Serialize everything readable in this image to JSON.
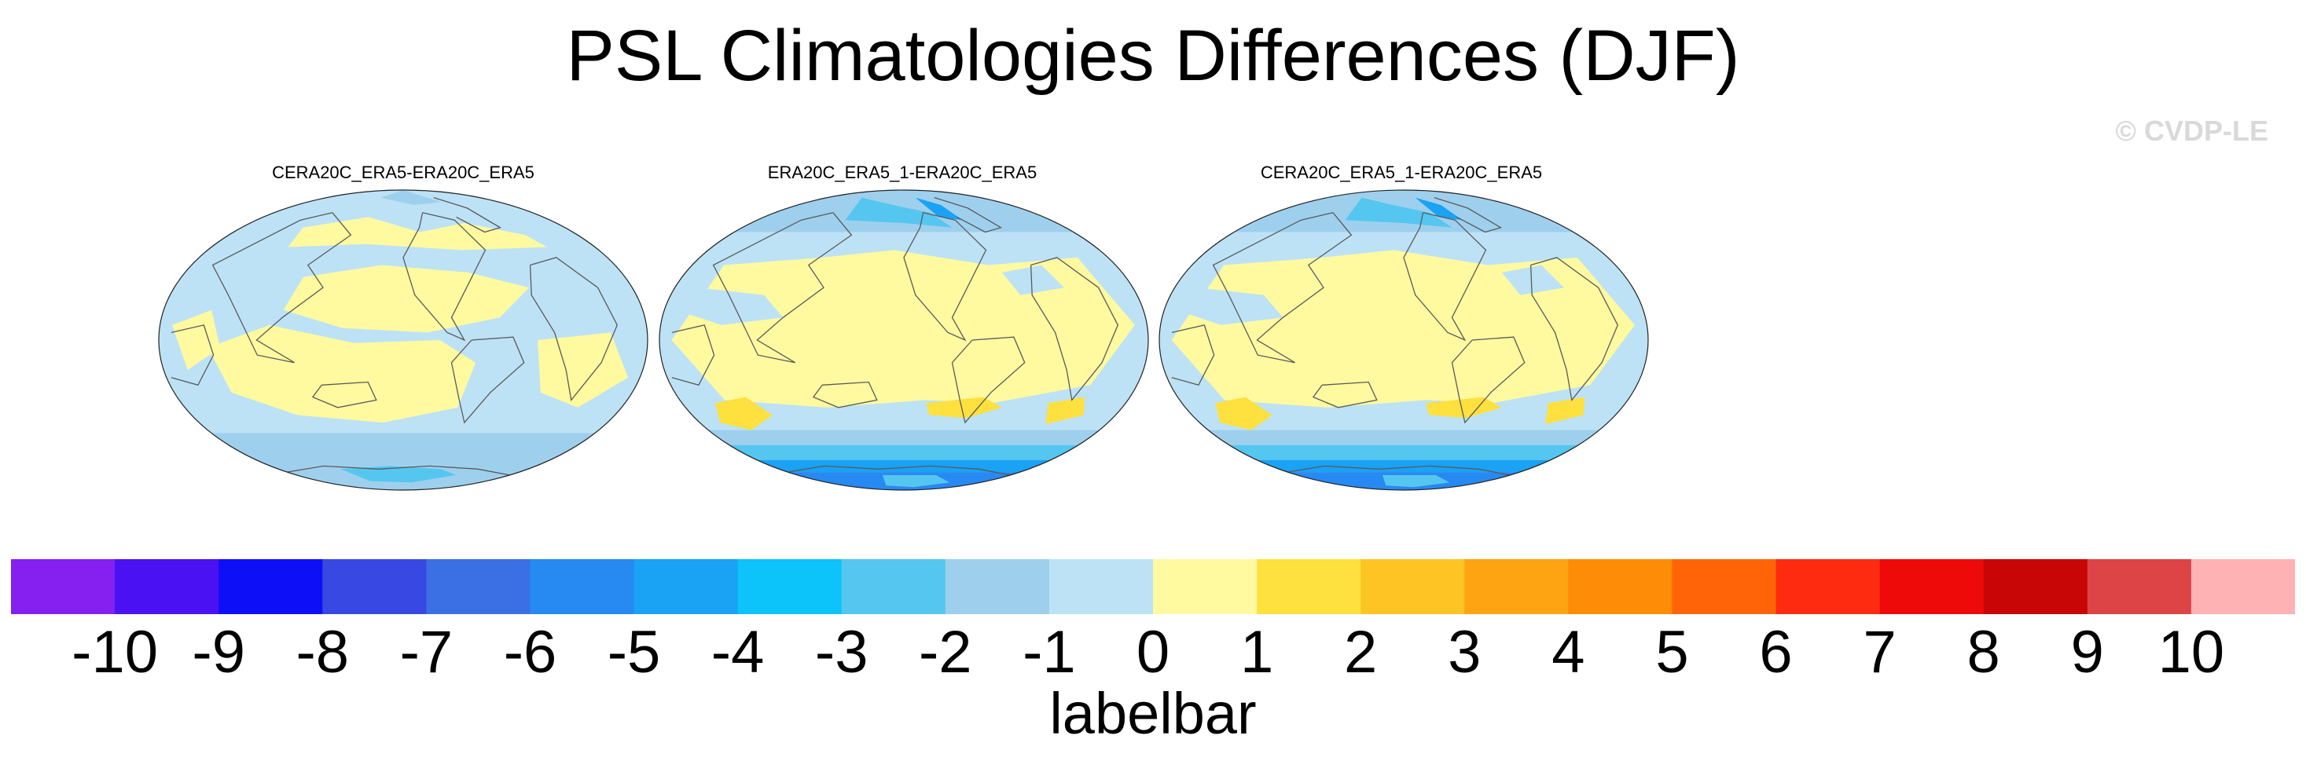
{
  "title": "PSL Climatologies Differences (DJF)",
  "watermark": "© CVDP-LE",
  "panels": [
    {
      "title": "CERA20C_ERA5-ERA20C_ERA5",
      "pattern": "cera"
    },
    {
      "title": "ERA20C_ERA5_1-ERA20C_ERA5",
      "pattern": "era"
    },
    {
      "title": "CERA20C_ERA5_1-ERA20C_ERA5",
      "pattern": "era"
    }
  ],
  "labelbar": {
    "caption": "labelbar",
    "ticks": [
      "-10",
      "-9",
      "-8",
      "-7",
      "-6",
      "-5",
      "-4",
      "-3",
      "-2",
      "-1",
      "0",
      "1",
      "2",
      "3",
      "4",
      "5",
      "6",
      "7",
      "8",
      "9",
      "10"
    ],
    "colors": [
      "#8520f0",
      "#4a12f2",
      "#0d10f7",
      "#3848e2",
      "#3a70e3",
      "#2789f2",
      "#1aa2f5",
      "#0cc3fa",
      "#55c6f0",
      "#9ed0ee",
      "#bde2f6",
      "#fff9a0",
      "#fee03e",
      "#fec423",
      "#fea311",
      "#fe8c06",
      "#ff6508",
      "#ff2b10",
      "#ef0a0a",
      "#c90606",
      "#dd4445",
      "#ffb2b3"
    ]
  },
  "palette": {
    "neg3": "#55c6f0",
    "neg2": "#9ed0ee",
    "neg1": "#bde2f6",
    "pos1": "#fff9a0",
    "pos2": "#fee03e",
    "neg4": "#1aa2f5",
    "neg5": "#2789f2"
  }
}
